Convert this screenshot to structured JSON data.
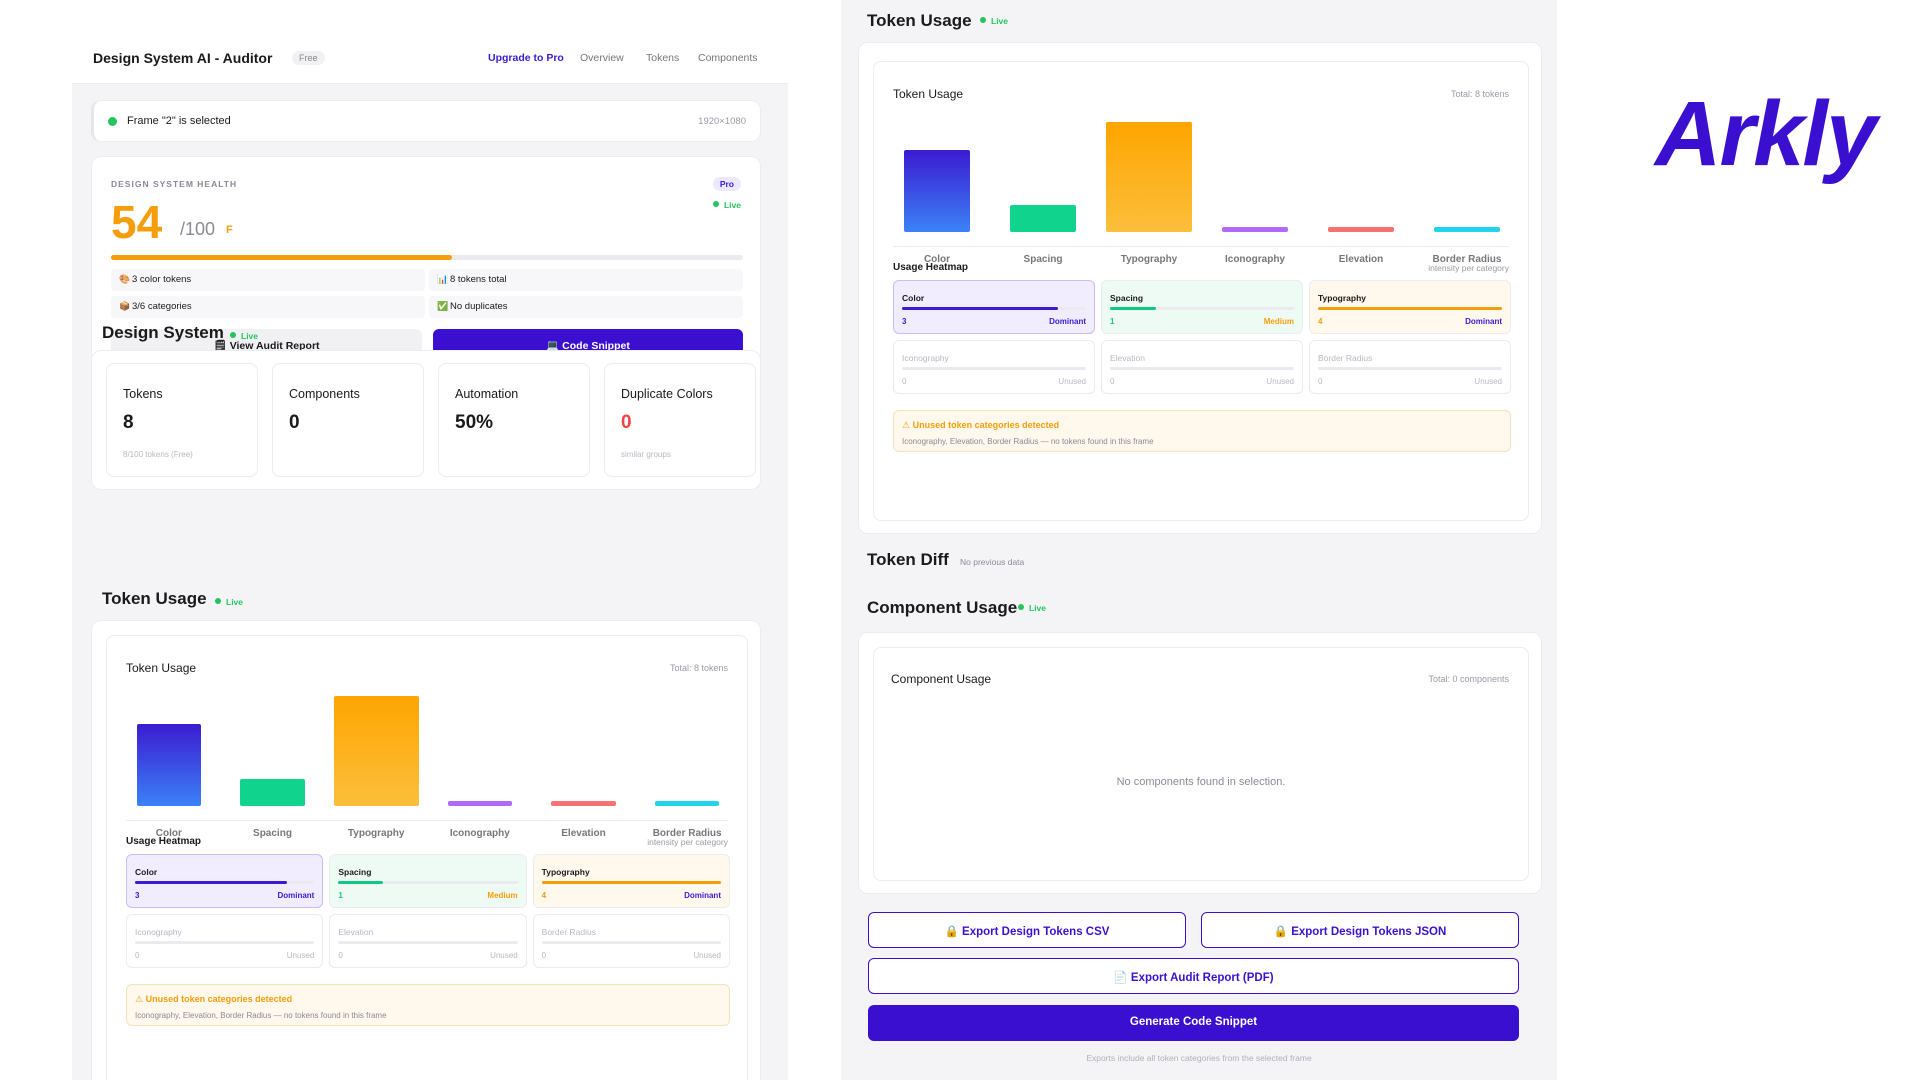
{
  "header": {
    "title": "Design System AI - Auditor",
    "plan_badge": "Free",
    "nav": {
      "upgrade": "Upgrade to Pro",
      "overview": "Overview",
      "tokens": "Tokens",
      "components": "Components"
    }
  },
  "selection": {
    "text": "Frame \"2\" is selected",
    "size": "1920×1080"
  },
  "health": {
    "label": "DESIGN SYSTEM HEALTH",
    "score": "54",
    "max": "/100",
    "grade": "F",
    "pro_badge": "Pro",
    "live": "Live",
    "progress": 0.54,
    "stats": {
      "colors": "3 color tokens",
      "total": "8 tokens total",
      "categories": "3/6 categories",
      "duplicates": "No duplicates"
    },
    "audit_button": "View Audit Report",
    "snippet_button": "Code Snippet"
  },
  "design_system": {
    "title": "Design System",
    "live": "Live",
    "metrics": [
      {
        "label": "Tokens",
        "value": "8",
        "sub": "8/100 tokens (Free)"
      },
      {
        "label": "Components",
        "value": "0",
        "sub": ""
      },
      {
        "label": "Automation",
        "value": "50%",
        "sub": ""
      },
      {
        "label": "Duplicate Colors",
        "value": "0",
        "sub": "similar groups"
      }
    ]
  },
  "token_usage": {
    "section_title": "Token Usage",
    "live": "Live",
    "card_title": "Token Usage",
    "total": "Total: 8 tokens",
    "bars": [
      {
        "label": "Color",
        "value": 3,
        "color_from": "#3b1bd1",
        "color_to": "#3b82f6"
      },
      {
        "label": "Spacing",
        "value": 1,
        "color_from": "#10d48e",
        "color_to": "#10d48e"
      },
      {
        "label": "Typography",
        "value": 4,
        "color_from": "#ffa500",
        "color_to": "#fbbf3c"
      },
      {
        "label": "Iconography",
        "value": 0,
        "color_from": "#b06af5",
        "color_to": "#b06af5"
      },
      {
        "label": "Elevation",
        "value": 0,
        "color_from": "#f87171",
        "color_to": "#f87171"
      },
      {
        "label": "Border Radius",
        "value": 0,
        "color_from": "#22d3ee",
        "color_to": "#22d3ee"
      }
    ],
    "heatmap_title": "Usage Heatmap",
    "heatmap_sub": "intensity per category",
    "heatmap": [
      {
        "name": "Color",
        "count": "3",
        "level": "Dominant",
        "fill": 0.85,
        "color": "#3b1bd1",
        "bg": "#f1edfe",
        "level_color": "#3b1bd1"
      },
      {
        "name": "Spacing",
        "count": "1",
        "level": "Medium",
        "fill": 0.25,
        "color": "#10c784",
        "bg": "#eefbf5",
        "level_color": "#f59e0b"
      },
      {
        "name": "Typography",
        "count": "4",
        "level": "Dominant",
        "fill": 1.0,
        "color": "#f59e0b",
        "bg": "#fff8ec",
        "level_color": "#3b1bd1"
      },
      {
        "name": "Iconography",
        "count": "0",
        "level": "Unused",
        "fill": 0,
        "color": "#ccc",
        "bg": "#fff",
        "level_color": "#b8b8c2"
      },
      {
        "name": "Elevation",
        "count": "0",
        "level": "Unused",
        "fill": 0,
        "color": "#ccc",
        "bg": "#fff",
        "level_color": "#b8b8c2"
      },
      {
        "name": "Border Radius",
        "count": "0",
        "level": "Unused",
        "fill": 0,
        "color": "#ccc",
        "bg": "#fff",
        "level_color": "#b8b8c2"
      }
    ],
    "warning_title": "⚠ Unused token categories detected",
    "warning_text": "Iconography, Elevation, Border Radius — no tokens found in this frame"
  },
  "token_diff": {
    "title": "Token Diff",
    "note": "No previous data"
  },
  "component_usage": {
    "section_title": "Component Usage",
    "live": "Live",
    "card_title": "Component Usage",
    "total": "Total: 0 components",
    "empty": "No components found in selection."
  },
  "exports": {
    "csv": "🔒 Export Design Tokens CSV",
    "json": "🔒 Export Design Tokens JSON",
    "pdf": "📄 Export Audit Report (PDF)",
    "generate": "Generate Code Snippet",
    "note": "Exports include all token categories from the selected frame"
  },
  "brand": {
    "logo": "Arkly",
    "color": "#3b0fcf"
  },
  "icons": {
    "audit": "clipboard-icon",
    "snippet": "laptop-icon",
    "lock": "lock-icon",
    "pdf": "document-icon"
  }
}
